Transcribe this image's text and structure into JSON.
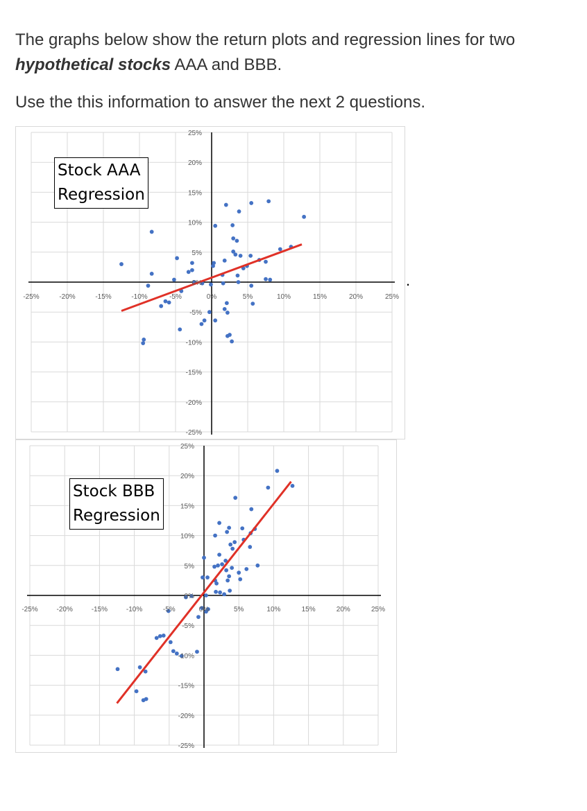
{
  "intro": {
    "line1_pre": "The graphs below show the return plots and regression lines for two ",
    "line1_bold": "hypothetical stocks",
    "line1_post": " AAA and BBB.",
    "line2": "Use the this information to answer the next 2 questions."
  },
  "stray_mark": ".",
  "colors": {
    "points": "#4472c4",
    "regression": "#e03127",
    "axis": "#000000",
    "grid": "#d9d9d9"
  },
  "chart_data": [
    {
      "type": "scatter",
      "title_lines": [
        "Stock AAA",
        "Regression"
      ],
      "xlim": [
        -25,
        25
      ],
      "ylim": [
        -25,
        25
      ],
      "grid": true,
      "x_ticks": [
        "-25%",
        "-20%",
        "-15%",
        "-10%",
        "-5%",
        "0%",
        "5%",
        "10%",
        "15%",
        "20%",
        "25%"
      ],
      "y_ticks": [
        "25%",
        "20%",
        "15%",
        "10%",
        "5%",
        "0%",
        "-5%",
        "-10%",
        "-15%",
        "-20%",
        "-25%"
      ],
      "regression": {
        "x": [
          -12.5,
          12.5
        ],
        "y": [
          -4.8,
          6.3
        ]
      },
      "points": [
        [
          -12.5,
          3.0
        ],
        [
          -8.3,
          8.4
        ],
        [
          -8.3,
          1.4
        ],
        [
          -8.8,
          -0.6
        ],
        [
          -9.4,
          -9.6
        ],
        [
          -9.5,
          -10.2
        ],
        [
          -7.0,
          -4.0
        ],
        [
          -6.4,
          -3.2
        ],
        [
          -5.9,
          -3.4
        ],
        [
          -5.2,
          0.4
        ],
        [
          -4.8,
          4.0
        ],
        [
          -4.4,
          -7.9
        ],
        [
          -4.2,
          -1.5
        ],
        [
          -3.2,
          1.7
        ],
        [
          -2.7,
          3.2
        ],
        [
          -2.7,
          2.0
        ],
        [
          -2.4,
          0.0
        ],
        [
          -1.3,
          -0.2
        ],
        [
          -1.4,
          -7.0
        ],
        [
          -1.0,
          -6.4
        ],
        [
          -0.3,
          -5.0
        ],
        [
          -0.1,
          -0.4
        ],
        [
          0.2,
          2.7
        ],
        [
          0.3,
          3.2
        ],
        [
          0.5,
          -6.4
        ],
        [
          0.5,
          9.4
        ],
        [
          1.5,
          1.2
        ],
        [
          1.6,
          -0.2
        ],
        [
          1.8,
          3.6
        ],
        [
          1.8,
          -4.5
        ],
        [
          2.0,
          12.9
        ],
        [
          2.1,
          -3.5
        ],
        [
          2.2,
          -9.0
        ],
        [
          2.2,
          -5.1
        ],
        [
          2.5,
          -8.8
        ],
        [
          2.8,
          -9.9
        ],
        [
          2.9,
          9.5
        ],
        [
          3.0,
          7.3
        ],
        [
          3.0,
          5.1
        ],
        [
          3.3,
          4.6
        ],
        [
          3.5,
          6.9
        ],
        [
          3.6,
          1.1
        ],
        [
          3.8,
          11.8
        ],
        [
          3.7,
          0.0
        ],
        [
          4.0,
          4.4
        ],
        [
          4.4,
          2.3
        ],
        [
          4.9,
          2.7
        ],
        [
          5.4,
          4.4
        ],
        [
          5.5,
          13.2
        ],
        [
          5.5,
          -0.6
        ],
        [
          5.7,
          -3.6
        ],
        [
          6.6,
          3.7
        ],
        [
          7.5,
          3.4
        ],
        [
          7.5,
          0.5
        ],
        [
          7.9,
          13.5
        ],
        [
          8.1,
          0.4
        ],
        [
          9.5,
          5.5
        ],
        [
          11.0,
          5.9
        ],
        [
          12.8,
          10.9
        ]
      ]
    },
    {
      "type": "scatter",
      "title_lines": [
        "Stock BBB",
        "Regression"
      ],
      "xlim": [
        -25,
        25
      ],
      "ylim": [
        -25,
        25
      ],
      "grid": true,
      "x_ticks": [
        "-25%",
        "-20%",
        "-15%",
        "-10%",
        "-5%",
        "0%",
        "5%",
        "10%",
        "15%",
        "20%",
        "25%"
      ],
      "y_ticks": [
        "25%",
        "20%",
        "15%",
        "10%",
        "5%",
        "0%",
        "-5%",
        "-10%",
        "-15%",
        "-20%",
        "-25%"
      ],
      "regression": {
        "x": [
          -12.5,
          12.5
        ],
        "y": [
          -18.0,
          19.0
        ]
      },
      "points": [
        [
          -12.4,
          -12.3
        ],
        [
          -9.7,
          -16.0
        ],
        [
          -9.2,
          -12.0
        ],
        [
          -8.7,
          -17.5
        ],
        [
          -8.4,
          -12.7
        ],
        [
          -8.3,
          -17.3
        ],
        [
          -6.8,
          -7.1
        ],
        [
          -6.3,
          -6.8
        ],
        [
          -5.8,
          -6.7
        ],
        [
          -5.1,
          -2.6
        ],
        [
          -4.8,
          -7.8
        ],
        [
          -4.4,
          -9.3
        ],
        [
          -3.9,
          -9.7
        ],
        [
          -3.2,
          -10.1
        ],
        [
          -2.6,
          -0.3
        ],
        [
          -1.8,
          -0.1
        ],
        [
          -1.0,
          -9.4
        ],
        [
          -0.8,
          -3.6
        ],
        [
          -0.3,
          -2.1
        ],
        [
          -0.2,
          3.0
        ],
        [
          0.0,
          6.3
        ],
        [
          0.3,
          0.0
        ],
        [
          0.3,
          -2.7
        ],
        [
          0.5,
          3.0
        ],
        [
          0.6,
          -2.3
        ],
        [
          1.5,
          4.8
        ],
        [
          1.6,
          2.5
        ],
        [
          1.6,
          10.0
        ],
        [
          1.7,
          0.6
        ],
        [
          1.8,
          2.0
        ],
        [
          2.0,
          5.0
        ],
        [
          2.2,
          12.1
        ],
        [
          2.2,
          6.8
        ],
        [
          2.3,
          0.5
        ],
        [
          2.6,
          5.2
        ],
        [
          2.9,
          0.2
        ],
        [
          3.1,
          5.8
        ],
        [
          3.2,
          4.2
        ],
        [
          3.3,
          10.6
        ],
        [
          3.4,
          2.5
        ],
        [
          3.6,
          3.2
        ],
        [
          3.6,
          11.3
        ],
        [
          3.7,
          0.8
        ],
        [
          3.8,
          8.5
        ],
        [
          4.0,
          4.6
        ],
        [
          4.1,
          7.8
        ],
        [
          4.4,
          8.9
        ],
        [
          4.5,
          16.3
        ],
        [
          5.0,
          3.8
        ],
        [
          5.2,
          2.7
        ],
        [
          5.5,
          11.2
        ],
        [
          5.7,
          9.3
        ],
        [
          6.1,
          4.4
        ],
        [
          6.6,
          8.1
        ],
        [
          6.7,
          10.4
        ],
        [
          6.8,
          14.4
        ],
        [
          7.3,
          11.1
        ],
        [
          7.7,
          5.0
        ],
        [
          9.2,
          18.0
        ],
        [
          10.5,
          20.8
        ],
        [
          12.7,
          18.3
        ]
      ]
    }
  ]
}
